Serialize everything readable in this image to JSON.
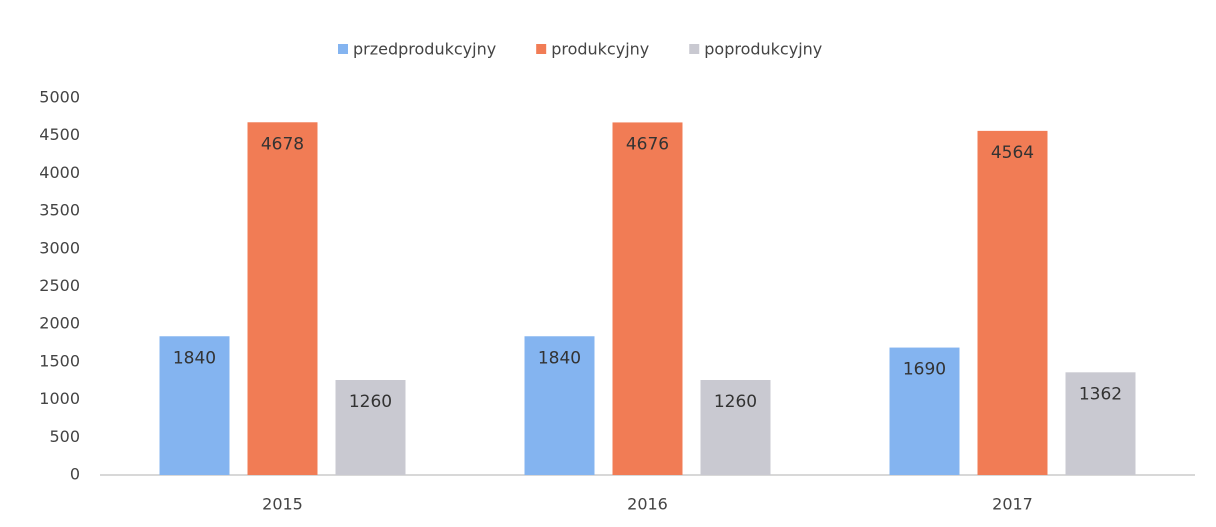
{
  "chart_data": {
    "type": "bar",
    "categories": [
      "2015",
      "2016",
      "2017"
    ],
    "series": [
      {
        "name": "przedprodukcyjny",
        "color": "#84b4f0",
        "values": [
          1840,
          1840,
          1690
        ]
      },
      {
        "name": "produkcyjny",
        "color": "#f17c55",
        "values": [
          4678,
          4676,
          4564
        ]
      },
      {
        "name": "poprodukcyjny",
        "color": "#c9c9d1",
        "values": [
          1260,
          1260,
          1362
        ]
      }
    ],
    "ylim": [
      0,
      5000
    ],
    "yticks": [
      0,
      500,
      1000,
      1500,
      2000,
      2500,
      3000,
      3500,
      4000,
      4500,
      5000
    ],
    "grid": false,
    "legend": "top"
  }
}
